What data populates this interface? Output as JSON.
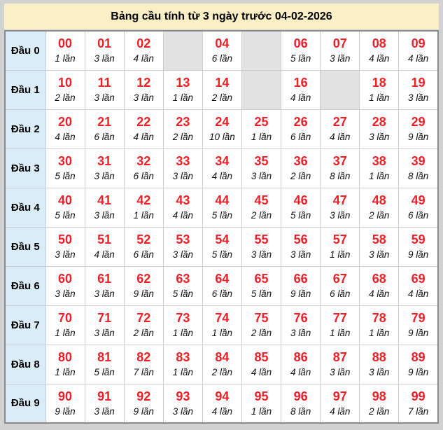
{
  "title": "Bảng cầu tính từ 3 ngày trước 04-02-2026",
  "colors": {
    "page_bg": "#d2d2d2",
    "title_bg": "#fbf0c5",
    "label_bg": "#d9ecf7",
    "empty_bg": "#e2e2e2",
    "number_red": "#ee1f27",
    "table_border": "#8a8a8a",
    "cell_border": "#cccccc"
  },
  "table": {
    "rows": [
      {
        "label": "Đầu 0",
        "cells": [
          {
            "number": "00",
            "count": "1 lần"
          },
          {
            "number": "01",
            "count": "3 lần"
          },
          {
            "number": "02",
            "count": "4 lần"
          },
          null,
          {
            "number": "04",
            "count": "6 lần"
          },
          null,
          {
            "number": "06",
            "count": "5 lần"
          },
          {
            "number": "07",
            "count": "3 lần"
          },
          {
            "number": "08",
            "count": "4 lần"
          },
          {
            "number": "09",
            "count": "4 lần"
          }
        ]
      },
      {
        "label": "Đầu 1",
        "cells": [
          {
            "number": "10",
            "count": "2 lần"
          },
          {
            "number": "11",
            "count": "3 lần"
          },
          {
            "number": "12",
            "count": "3 lần"
          },
          {
            "number": "13",
            "count": "1 lần"
          },
          {
            "number": "14",
            "count": "2 lần"
          },
          null,
          {
            "number": "16",
            "count": "4 lần"
          },
          null,
          {
            "number": "18",
            "count": "1 lần"
          },
          {
            "number": "19",
            "count": "3 lần"
          }
        ]
      },
      {
        "label": "Đầu 2",
        "cells": [
          {
            "number": "20",
            "count": "4 lần"
          },
          {
            "number": "21",
            "count": "6 lần"
          },
          {
            "number": "22",
            "count": "4 lần"
          },
          {
            "number": "23",
            "count": "2 lần"
          },
          {
            "number": "24",
            "count": "10 lần"
          },
          {
            "number": "25",
            "count": "1 lần"
          },
          {
            "number": "26",
            "count": "6 lần"
          },
          {
            "number": "27",
            "count": "4 lần"
          },
          {
            "number": "28",
            "count": "3 lần"
          },
          {
            "number": "29",
            "count": "9 lần"
          }
        ]
      },
      {
        "label": "Đầu 3",
        "cells": [
          {
            "number": "30",
            "count": "5 lần"
          },
          {
            "number": "31",
            "count": "3 lần"
          },
          {
            "number": "32",
            "count": "6 lần"
          },
          {
            "number": "33",
            "count": "3 lần"
          },
          {
            "number": "34",
            "count": "4 lần"
          },
          {
            "number": "35",
            "count": "3 lần"
          },
          {
            "number": "36",
            "count": "2 lần"
          },
          {
            "number": "37",
            "count": "8 lần"
          },
          {
            "number": "38",
            "count": "1 lần"
          },
          {
            "number": "39",
            "count": "8 lần"
          }
        ]
      },
      {
        "label": "Đầu 4",
        "cells": [
          {
            "number": "40",
            "count": "5 lần"
          },
          {
            "number": "41",
            "count": "3 lần"
          },
          {
            "number": "42",
            "count": "1 lần"
          },
          {
            "number": "43",
            "count": "4 lần"
          },
          {
            "number": "44",
            "count": "5 lần"
          },
          {
            "number": "45",
            "count": "2 lần"
          },
          {
            "number": "46",
            "count": "5 lần"
          },
          {
            "number": "47",
            "count": "3 lần"
          },
          {
            "number": "48",
            "count": "2 lần"
          },
          {
            "number": "49",
            "count": "6 lần"
          }
        ]
      },
      {
        "label": "Đầu 5",
        "cells": [
          {
            "number": "50",
            "count": "3 lần"
          },
          {
            "number": "51",
            "count": "4 lần"
          },
          {
            "number": "52",
            "count": "6 lần"
          },
          {
            "number": "53",
            "count": "3 lần"
          },
          {
            "number": "54",
            "count": "5 lần"
          },
          {
            "number": "55",
            "count": "3 lần"
          },
          {
            "number": "56",
            "count": "3 lần"
          },
          {
            "number": "57",
            "count": "1 lần"
          },
          {
            "number": "58",
            "count": "3 lần"
          },
          {
            "number": "59",
            "count": "9 lần"
          }
        ]
      },
      {
        "label": "Đầu 6",
        "cells": [
          {
            "number": "60",
            "count": "3 lần"
          },
          {
            "number": "61",
            "count": "3 lần"
          },
          {
            "number": "62",
            "count": "9 lần"
          },
          {
            "number": "63",
            "count": "5 lần"
          },
          {
            "number": "64",
            "count": "6 lần"
          },
          {
            "number": "65",
            "count": "5 lần"
          },
          {
            "number": "66",
            "count": "9 lần"
          },
          {
            "number": "67",
            "count": "6 lần"
          },
          {
            "number": "68",
            "count": "4 lần"
          },
          {
            "number": "69",
            "count": "4 lần"
          }
        ]
      },
      {
        "label": "Đầu 7",
        "cells": [
          {
            "number": "70",
            "count": "1 lần"
          },
          {
            "number": "71",
            "count": "3 lần"
          },
          {
            "number": "72",
            "count": "2 lần"
          },
          {
            "number": "73",
            "count": "1 lần"
          },
          {
            "number": "74",
            "count": "1 lần"
          },
          {
            "number": "75",
            "count": "2 lần"
          },
          {
            "number": "76",
            "count": "3 lần"
          },
          {
            "number": "77",
            "count": "1 lần"
          },
          {
            "number": "78",
            "count": "1 lần"
          },
          {
            "number": "79",
            "count": "9 lần"
          }
        ]
      },
      {
        "label": "Đầu 8",
        "cells": [
          {
            "number": "80",
            "count": "1 lần"
          },
          {
            "number": "81",
            "count": "5 lần"
          },
          {
            "number": "82",
            "count": "7 lần"
          },
          {
            "number": "83",
            "count": "1 lần"
          },
          {
            "number": "84",
            "count": "2 lần"
          },
          {
            "number": "85",
            "count": "4 lần"
          },
          {
            "number": "86",
            "count": "4 lần"
          },
          {
            "number": "87",
            "count": "3 lần"
          },
          {
            "number": "88",
            "count": "3 lần"
          },
          {
            "number": "89",
            "count": "9 lần"
          }
        ]
      },
      {
        "label": "Đầu 9",
        "cells": [
          {
            "number": "90",
            "count": "9 lần"
          },
          {
            "number": "91",
            "count": "3 lần"
          },
          {
            "number": "92",
            "count": "9 lần"
          },
          {
            "number": "93",
            "count": "3 lần"
          },
          {
            "number": "94",
            "count": "4 lần"
          },
          {
            "number": "95",
            "count": "1 lần"
          },
          {
            "number": "96",
            "count": "8 lần"
          },
          {
            "number": "97",
            "count": "4 lần"
          },
          {
            "number": "98",
            "count": "2 lần"
          },
          {
            "number": "99",
            "count": "7 lần"
          }
        ]
      }
    ]
  }
}
